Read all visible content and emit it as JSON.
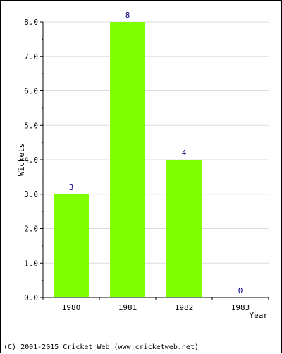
{
  "chart_data": {
    "type": "bar",
    "categories": [
      "1980",
      "1981",
      "1982",
      "1983"
    ],
    "values": [
      3,
      8,
      4,
      0
    ],
    "value_labels": [
      "3",
      "8",
      "4",
      "0"
    ],
    "ylabel": "Wickets",
    "xlabel": "Year",
    "ylim": [
      0,
      8
    ],
    "y_ticks": [
      "0.0",
      "1.0",
      "2.0",
      "3.0",
      "4.0",
      "5.0",
      "6.0",
      "7.0",
      "8.0"
    ],
    "grid": true,
    "legend": "none",
    "bar_color": "#80ff00",
    "label_color": "#000080"
  },
  "footer": {
    "copyright": "(C) 2001-2015 Cricket Web (www.cricketweb.net)"
  }
}
